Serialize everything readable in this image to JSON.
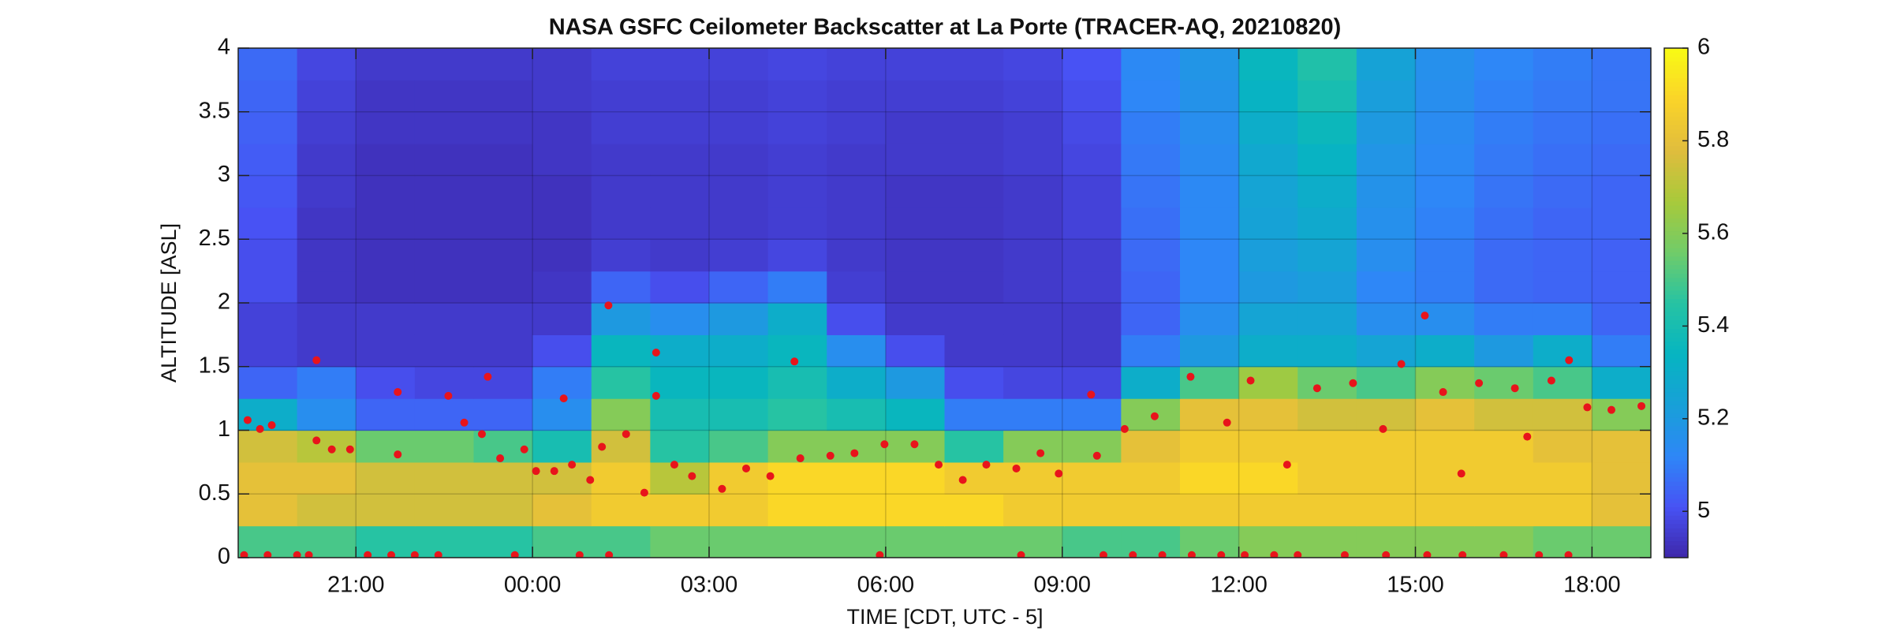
{
  "chart_data": {
    "type": "heatmap",
    "title": "NASA GSFC Ceilometer Backscatter at La Porte (TRACER-AQ, 20210820)",
    "xlabel": "TIME [CDT, UTC - 5]",
    "ylabel": "ALTITUDE [ASL]",
    "xlim": [
      19,
      43
    ],
    "ylim": [
      0,
      4
    ],
    "xticks": [
      {
        "value": 21,
        "label": "21:00"
      },
      {
        "value": 24,
        "label": "00:00"
      },
      {
        "value": 27,
        "label": "03:00"
      },
      {
        "value": 30,
        "label": "06:00"
      },
      {
        "value": 33,
        "label": "09:00"
      },
      {
        "value": 36,
        "label": "12:00"
      },
      {
        "value": 39,
        "label": "15:00"
      },
      {
        "value": 42,
        "label": "18:00"
      }
    ],
    "yticks": [
      0,
      0.5,
      1,
      1.5,
      2,
      2.5,
      3,
      3.5,
      4
    ],
    "grid": true,
    "colormap": "parula",
    "clim": [
      4.9,
      6
    ],
    "cticks": [
      5,
      5.2,
      5.4,
      5.6,
      5.8,
      6
    ],
    "x": [
      19.5,
      20.5,
      21.5,
      22.5,
      23.5,
      24.5,
      25.5,
      26.5,
      27.5,
      28.5,
      29.5,
      30.5,
      31.5,
      32.5,
      33.5,
      34.5,
      35.5,
      36.5,
      37.5,
      38.5,
      39.5,
      40.5,
      41.5,
      42.5
    ],
    "y": [
      0.125,
      0.375,
      0.625,
      0.875,
      1.125,
      1.375,
      1.625,
      1.875,
      2.125,
      2.375,
      2.625,
      2.875,
      3.125,
      3.375,
      3.625,
      3.875
    ],
    "z": [
      [
        5.5,
        5.5,
        5.45,
        5.45,
        5.45,
        5.5,
        5.5,
        5.55,
        5.55,
        5.55,
        5.55,
        5.55,
        5.55,
        5.55,
        5.5,
        5.5,
        5.55,
        5.6,
        5.6,
        5.6,
        5.6,
        5.6,
        5.55,
        5.55
      ],
      [
        5.8,
        5.75,
        5.75,
        5.75,
        5.75,
        5.8,
        5.85,
        5.85,
        5.85,
        5.9,
        5.9,
        5.9,
        5.9,
        5.85,
        5.85,
        5.85,
        5.85,
        5.85,
        5.85,
        5.85,
        5.85,
        5.85,
        5.85,
        5.8
      ],
      [
        5.8,
        5.8,
        5.75,
        5.75,
        5.75,
        5.75,
        5.85,
        5.7,
        5.85,
        5.9,
        5.9,
        5.9,
        5.85,
        5.85,
        5.85,
        5.85,
        5.9,
        5.9,
        5.85,
        5.85,
        5.85,
        5.85,
        5.85,
        5.8
      ],
      [
        5.75,
        5.7,
        5.55,
        5.55,
        5.5,
        5.4,
        5.75,
        5.45,
        5.5,
        5.6,
        5.6,
        5.6,
        5.45,
        5.6,
        5.6,
        5.8,
        5.85,
        5.85,
        5.85,
        5.85,
        5.85,
        5.85,
        5.8,
        5.8
      ],
      [
        5.3,
        5.15,
        5.05,
        5.05,
        5.05,
        5.15,
        5.6,
        5.4,
        5.4,
        5.45,
        5.4,
        5.35,
        5.1,
        5.1,
        5.1,
        5.6,
        5.8,
        5.8,
        5.75,
        5.75,
        5.8,
        5.75,
        5.75,
        5.6
      ],
      [
        5.05,
        5.1,
        5.0,
        4.98,
        4.98,
        5.1,
        5.45,
        5.35,
        5.35,
        5.4,
        5.3,
        5.2,
        5.0,
        4.98,
        4.98,
        5.3,
        5.5,
        5.65,
        5.55,
        5.5,
        5.6,
        5.55,
        5.5,
        5.3
      ],
      [
        4.97,
        4.95,
        4.95,
        4.95,
        4.95,
        5.0,
        5.35,
        5.3,
        5.3,
        5.35,
        5.15,
        5.0,
        4.95,
        4.95,
        4.95,
        5.1,
        5.2,
        5.3,
        5.3,
        5.25,
        5.3,
        5.2,
        5.3,
        5.1
      ],
      [
        4.97,
        4.95,
        4.95,
        4.95,
        4.95,
        4.95,
        5.2,
        5.15,
        5.2,
        5.3,
        5.0,
        4.95,
        4.95,
        4.95,
        4.95,
        5.05,
        5.15,
        5.25,
        5.25,
        5.15,
        5.15,
        5.1,
        5.1,
        5.05
      ],
      [
        5.0,
        4.94,
        4.93,
        4.93,
        4.93,
        4.94,
        5.05,
        5.0,
        5.05,
        5.1,
        4.96,
        4.94,
        4.94,
        4.95,
        4.96,
        5.05,
        5.12,
        5.2,
        5.22,
        5.12,
        5.1,
        5.06,
        5.05,
        5.04
      ],
      [
        5.0,
        4.94,
        4.93,
        4.93,
        4.93,
        4.93,
        4.96,
        4.95,
        4.96,
        4.98,
        4.95,
        4.94,
        4.94,
        4.95,
        4.96,
        5.06,
        5.12,
        5.22,
        5.25,
        5.15,
        5.1,
        5.06,
        5.05,
        5.04
      ],
      [
        5.01,
        4.94,
        4.93,
        4.93,
        4.93,
        4.93,
        4.95,
        4.95,
        4.95,
        4.96,
        4.95,
        4.94,
        4.94,
        4.95,
        4.97,
        5.07,
        5.13,
        5.24,
        5.28,
        5.16,
        5.11,
        5.07,
        5.05,
        5.05
      ],
      [
        5.02,
        4.95,
        4.93,
        4.93,
        4.93,
        4.93,
        4.95,
        4.95,
        4.95,
        4.96,
        4.95,
        4.94,
        4.94,
        4.95,
        4.97,
        5.08,
        5.13,
        5.25,
        5.3,
        5.17,
        5.12,
        5.08,
        5.06,
        5.05
      ],
      [
        5.03,
        4.95,
        4.93,
        4.93,
        4.93,
        4.94,
        4.95,
        4.95,
        4.95,
        4.96,
        4.95,
        4.95,
        4.95,
        4.96,
        4.98,
        5.09,
        5.14,
        5.27,
        5.33,
        5.18,
        5.13,
        5.09,
        5.07,
        5.06
      ],
      [
        5.04,
        4.96,
        4.94,
        4.94,
        4.94,
        4.94,
        4.96,
        4.96,
        4.96,
        4.97,
        4.96,
        4.95,
        4.95,
        4.96,
        4.99,
        5.1,
        5.15,
        5.3,
        5.36,
        5.2,
        5.14,
        5.1,
        5.08,
        5.07
      ],
      [
        5.05,
        4.97,
        4.94,
        4.94,
        4.94,
        4.95,
        4.96,
        4.96,
        4.96,
        4.97,
        4.96,
        4.96,
        4.96,
        4.97,
        5.0,
        5.12,
        5.17,
        5.33,
        5.4,
        5.22,
        5.15,
        5.11,
        5.09,
        5.08
      ],
      [
        5.06,
        4.98,
        4.95,
        4.95,
        4.95,
        4.95,
        4.97,
        4.97,
        4.97,
        4.98,
        4.97,
        4.97,
        4.97,
        4.98,
        5.01,
        5.13,
        5.18,
        5.35,
        5.43,
        5.24,
        5.16,
        5.12,
        5.1,
        5.08
      ]
    ],
    "overlay": {
      "type": "scatter",
      "color": "#e8141b",
      "x": [
        19.16,
        19.37,
        19.57,
        20.33,
        20.59,
        20.9,
        20.33,
        21.71,
        21.71,
        22.57,
        22.84,
        23.14,
        23.24,
        23.45,
        23.86,
        24.06,
        24.37,
        24.53,
        24.67,
        24.98,
        25.29,
        25.18,
        25.59,
        25.9,
        26.1,
        26.1,
        26.41,
        26.71,
        27.22,
        27.63,
        28.04,
        28.45,
        28.55,
        29.06,
        29.47,
        29.98,
        30.49,
        30.9,
        31.31,
        31.71,
        32.22,
        32.63,
        32.94,
        33.49,
        33.59,
        34.06,
        34.57,
        35.18,
        35.8,
        36.2,
        36.82,
        37.33,
        37.94,
        38.45,
        38.76,
        39.16,
        39.47,
        39.78,
        40.08,
        40.69,
        40.9,
        41.31,
        41.61,
        41.92,
        42.33,
        42.84,
        19.1,
        19.5,
        20.0,
        20.2,
        21.2,
        21.6,
        22.0,
        22.4,
        23.7,
        24.8,
        25.3,
        29.9,
        32.3,
        33.7,
        34.2,
        34.7,
        35.2,
        35.7,
        36.1,
        36.6,
        37.0,
        37.8,
        38.5,
        39.2,
        39.8,
        40.5,
        41.1,
        41.6
      ],
      "y": [
        1.08,
        1.01,
        1.04,
        0.92,
        0.85,
        0.85,
        1.55,
        1.3,
        0.81,
        1.27,
        1.06,
        0.97,
        1.42,
        0.78,
        0.85,
        0.68,
        0.68,
        1.25,
        0.73,
        0.61,
        1.98,
        0.87,
        0.97,
        0.51,
        1.61,
        1.27,
        0.73,
        0.64,
        0.54,
        0.7,
        0.64,
        1.54,
        0.78,
        0.8,
        0.82,
        0.89,
        0.89,
        0.73,
        0.61,
        0.73,
        0.7,
        0.82,
        0.66,
        1.28,
        0.8,
        1.01,
        1.11,
        1.42,
        1.06,
        1.39,
        0.73,
        1.33,
        1.37,
        1.01,
        1.52,
        1.9,
        1.3,
        0.66,
        1.37,
        1.33,
        0.95,
        1.39,
        1.55,
        1.18,
        1.16,
        1.19,
        0.02,
        0.02,
        0.02,
        0.02,
        0.02,
        0.02,
        0.02,
        0.02,
        0.02,
        0.02,
        0.02,
        0.02,
        0.02,
        0.02,
        0.02,
        0.02,
        0.02,
        0.02,
        0.02,
        0.02,
        0.02,
        0.02,
        0.02,
        0.02,
        0.02,
        0.02,
        0.02,
        0.02
      ]
    }
  }
}
